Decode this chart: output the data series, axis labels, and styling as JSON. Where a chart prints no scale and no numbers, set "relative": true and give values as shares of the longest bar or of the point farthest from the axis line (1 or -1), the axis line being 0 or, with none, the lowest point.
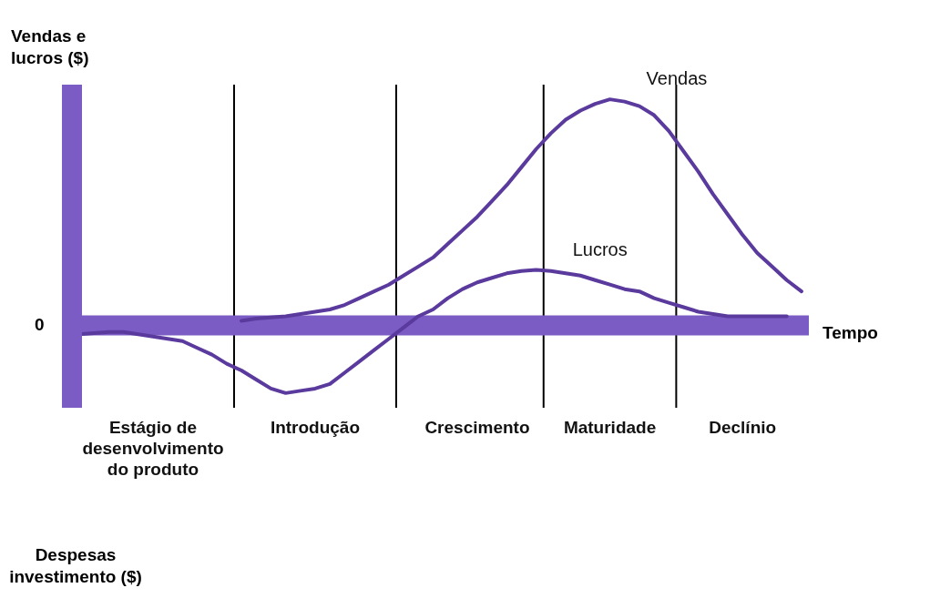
{
  "chart_data": {
    "type": "line",
    "relative": true,
    "ylabel": "Vendas e lucros ($)",
    "xlabel": "Tempo",
    "tick_labels": "x",
    "grid": false,
    "legend": false,
    "marker": "none",
    "line_style": "solid",
    "categories": [
      null,
      null,
      null,
      null,
      null,
      "Estágio de desenvolvimento do produto",
      null,
      null,
      null,
      null,
      null,
      null,
      null,
      null,
      null,
      null,
      "Introdução",
      null,
      null,
      null,
      null,
      null,
      null,
      null,
      null,
      null,
      null,
      "Crescimento",
      null,
      null,
      null,
      null,
      null,
      null,
      null,
      null,
      "Maturidade",
      null,
      null,
      null,
      null,
      null,
      null,
      null,
      null,
      "Declínio",
      null,
      null,
      null,
      null
    ],
    "series": [
      {
        "name": "Vendas",
        "color": "#5b3a9e",
        "values": [
          null,
          null,
          null,
          null,
          null,
          null,
          null,
          null,
          null,
          null,
          null,
          0.02,
          0.03,
          0.035,
          0.04,
          0.05,
          0.06,
          0.07,
          0.09,
          0.12,
          0.15,
          0.18,
          0.22,
          0.26,
          0.3,
          0.36,
          0.42,
          0.48,
          0.55,
          0.62,
          0.7,
          0.78,
          0.85,
          0.91,
          0.95,
          0.98,
          1,
          0.99,
          0.97,
          0.93,
          0.86,
          0.77,
          0.68,
          0.58,
          0.49,
          0.4,
          0.32,
          0.26,
          0.2,
          0.15
        ]
      },
      {
        "name": "Lucros",
        "color": "#5b3a9e",
        "values": [
          -0.04,
          -0.035,
          -0.03,
          -0.03,
          -0.04,
          -0.05,
          -0.06,
          -0.07,
          -0.1,
          -0.13,
          -0.17,
          -0.2,
          -0.24,
          -0.28,
          -0.3,
          -0.29,
          -0.28,
          -0.26,
          -0.21,
          -0.16,
          -0.11,
          -0.06,
          -0.01,
          0.04,
          0.07,
          0.12,
          0.16,
          0.19,
          0.21,
          0.23,
          0.24,
          0.245,
          0.24,
          0.23,
          0.22,
          0.2,
          0.18,
          0.16,
          0.15,
          0.12,
          0.1,
          0.08,
          0.06,
          0.05,
          0.04,
          0.04,
          0.04,
          0.04,
          0.04,
          null
        ]
      }
    ],
    "ref_lines": [
      {
        "axis": "y",
        "value": 0,
        "color": "#7a5cc4"
      }
    ],
    "annotations": [
      "0",
      "Despesas investimento ($)"
    ]
  }
}
